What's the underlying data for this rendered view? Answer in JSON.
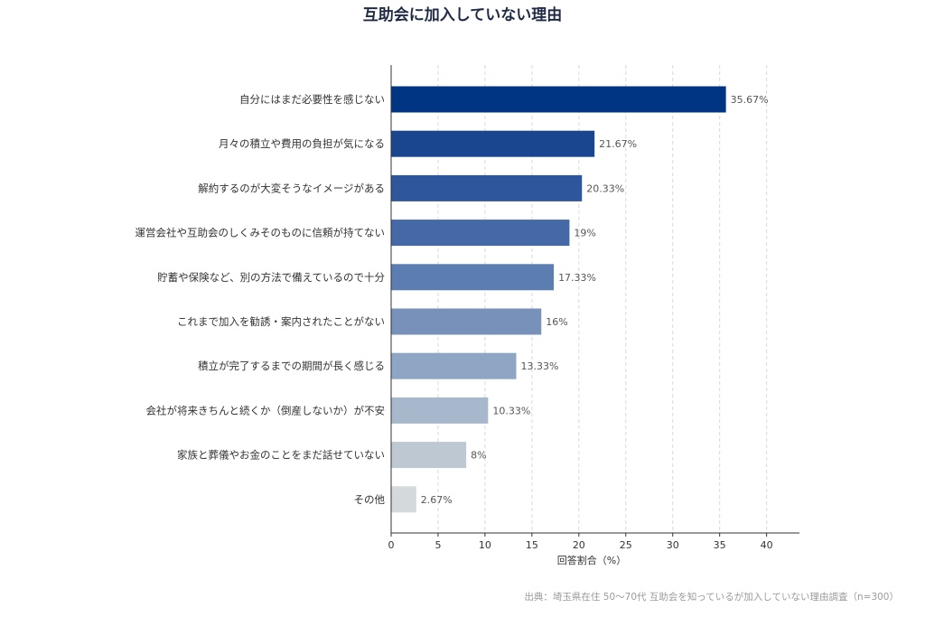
{
  "chart_data": {
    "type": "bar",
    "orientation": "horizontal",
    "title": "互助会に加入していない理由",
    "xlabel": "回答割合（%）",
    "ylabel": "",
    "xlim": [
      0,
      43.5
    ],
    "xticks": [
      0,
      5,
      10,
      15,
      20,
      25,
      30,
      35,
      40
    ],
    "grid": "vertical-dashed",
    "categories": [
      "自分にはまだ必要性を感じない",
      "月々の積立や費用の負担が気になる",
      "解約するのが大変そうなイメージがある",
      "運営会社や互助会のしくみそのものに信頼が持てない",
      "貯蓄や保険など、別の方法で備えているので十分",
      "これまで加入を勧誘・案内されたことがない",
      "積立が完了するまでの期間が長く感じる",
      "会社が将来きちんと続くか（倒産しないか）が不安",
      "家族と葬儀やお金のことをまだ話せていない",
      "その他"
    ],
    "values": [
      35.67,
      21.67,
      20.33,
      19,
      17.33,
      16,
      13.33,
      10.33,
      8,
      2.67
    ],
    "value_labels": [
      "35.67%",
      "21.67%",
      "20.33%",
      "19%",
      "17.33%",
      "16%",
      "13.33%",
      "10.33%",
      "8%",
      "2.67%"
    ],
    "colors": [
      "#003584",
      "#1a4690",
      "#2e569b",
      "#4469a6",
      "#5b7db1",
      "#7791ba",
      "#8ea5c4",
      "#a7b7cc",
      "#bec8d3",
      "#d4d9dc"
    ]
  },
  "source_note": "出典：埼玉県在住 50〜70代 互助会を知っているが加入していない理由調査（n=300）"
}
